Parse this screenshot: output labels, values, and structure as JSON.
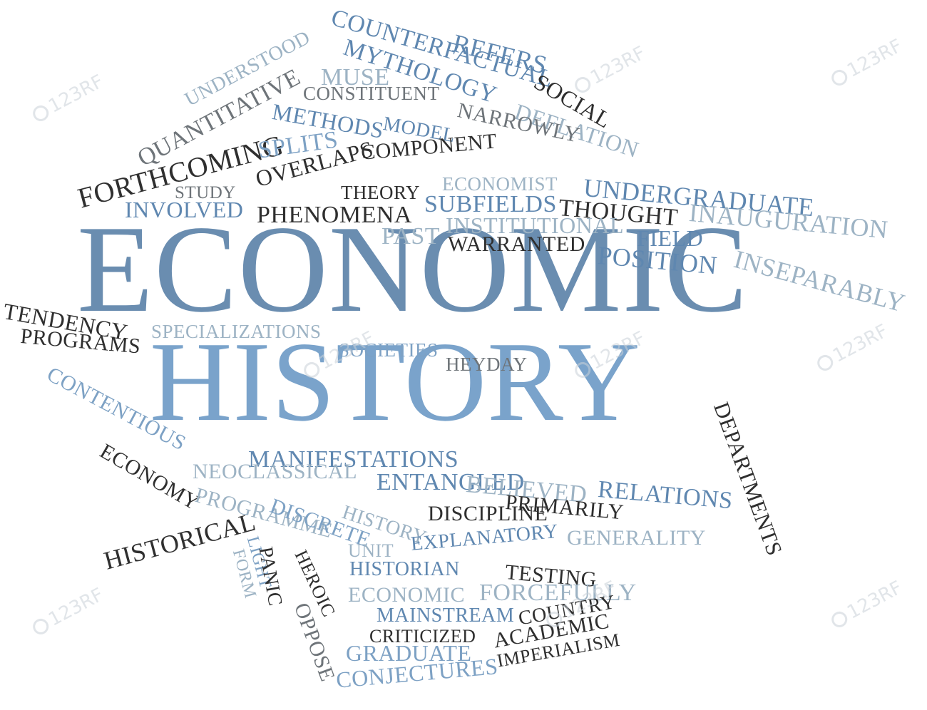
{
  "colors": {
    "dark": "#2f2f2f",
    "gray": "#6e7479",
    "steel": "#5f87b0",
    "lightsteel": "#7da1c4",
    "mist": "#9db3c4",
    "headline1": "#6a8db0",
    "headline2": "#7aa3cb"
  },
  "watermark": {
    "icon": "camera-aperture-icon",
    "text": "123RF"
  },
  "words": [
    {
      "text": "ECONOMIC",
      "tone": "headline1"
    },
    {
      "text": "HISTORY",
      "tone": "headline2"
    },
    {
      "text": "COUNTERFACTUAL",
      "tone": "steel"
    },
    {
      "text": "REFERS",
      "tone": "steel"
    },
    {
      "text": "MYTHOLOGY",
      "tone": "steel"
    },
    {
      "text": "SOCIAL",
      "tone": "dark"
    },
    {
      "text": "UNDERSTOOD",
      "tone": "mist"
    },
    {
      "text": "MUSE",
      "tone": "mist"
    },
    {
      "text": "QUANTITATIVE",
      "tone": "gray"
    },
    {
      "text": "CONSTITUENT",
      "tone": "gray"
    },
    {
      "text": "DEFLATION",
      "tone": "mist"
    },
    {
      "text": "METHODS",
      "tone": "steel"
    },
    {
      "text": "MODEL",
      "tone": "steel"
    },
    {
      "text": "NARROWLY",
      "tone": "gray"
    },
    {
      "text": "FORTHCOMING",
      "tone": "dark"
    },
    {
      "text": "SPLITS",
      "tone": "lightsteel"
    },
    {
      "text": "COMPONENT",
      "tone": "dark"
    },
    {
      "text": "OVERLAPS",
      "tone": "dark"
    },
    {
      "text": "STUDY",
      "tone": "gray"
    },
    {
      "text": "ECONOMIST",
      "tone": "mist"
    },
    {
      "text": "UNDERGRADUATE",
      "tone": "steel"
    },
    {
      "text": "THEORY",
      "tone": "dark"
    },
    {
      "text": "INVOLVED",
      "tone": "steel"
    },
    {
      "text": "PHENOMENA",
      "tone": "dark"
    },
    {
      "text": "SUBFIELDS",
      "tone": "steel"
    },
    {
      "text": "THOUGHT",
      "tone": "dark"
    },
    {
      "text": "INAUGURATION",
      "tone": "mist"
    },
    {
      "text": "INSTITUTIONAL",
      "tone": "mist"
    },
    {
      "text": "FIELD",
      "tone": "steel"
    },
    {
      "text": "PAST",
      "tone": "mist"
    },
    {
      "text": "WARRANTED",
      "tone": "dark"
    },
    {
      "text": "POSITION",
      "tone": "steel"
    },
    {
      "text": "INSEPARABLY",
      "tone": "mist"
    },
    {
      "text": "TENDENCY",
      "tone": "dark"
    },
    {
      "text": "PROGRAMS",
      "tone": "dark"
    },
    {
      "text": "SPECIALIZATIONS",
      "tone": "mist"
    },
    {
      "text": "SOCIETIES",
      "tone": "lightsteel"
    },
    {
      "text": "HEYDAY",
      "tone": "gray"
    },
    {
      "text": "DEPARTMENTS",
      "tone": "dark"
    },
    {
      "text": "CONTENTIOUS",
      "tone": "lightsteel"
    },
    {
      "text": "ECONOMY",
      "tone": "dark"
    },
    {
      "text": "MANIFESTATIONS",
      "tone": "steel"
    },
    {
      "text": "NEOCLASSICAL",
      "tone": "mist"
    },
    {
      "text": "ENTANGLED",
      "tone": "steel"
    },
    {
      "text": "BELIEVED",
      "tone": "mist"
    },
    {
      "text": "RELATIONS",
      "tone": "steel"
    },
    {
      "text": "PROGRAMME",
      "tone": "mist"
    },
    {
      "text": "DISCRETE",
      "tone": "lightsteel"
    },
    {
      "text": "HISTORY",
      "tone": "mist"
    },
    {
      "text": "DISCIPLINE",
      "tone": "dark"
    },
    {
      "text": "PRIMARILY",
      "tone": "dark"
    },
    {
      "text": "GENERALITY",
      "tone": "mist"
    },
    {
      "text": "HISTORICAL",
      "tone": "dark"
    },
    {
      "text": "LIGHT",
      "tone": "lightsteel"
    },
    {
      "text": "FORM",
      "tone": "mist"
    },
    {
      "text": "PANIC",
      "tone": "dark"
    },
    {
      "text": "HEROIC",
      "tone": "dark"
    },
    {
      "text": "UNIT",
      "tone": "mist"
    },
    {
      "text": "EXPLANATORY",
      "tone": "steel"
    },
    {
      "text": "TESTING",
      "tone": "dark"
    },
    {
      "text": "HISTORIAN",
      "tone": "steel"
    },
    {
      "text": "ECONOMIC",
      "tone": "mist"
    },
    {
      "text": "FORCEFULLY",
      "tone": "mist"
    },
    {
      "text": "OPPOSE",
      "tone": "gray"
    },
    {
      "text": "MAINSTREAM",
      "tone": "steel"
    },
    {
      "text": "COUNTRY",
      "tone": "dark"
    },
    {
      "text": "CRITICIZED",
      "tone": "dark"
    },
    {
      "text": "ACADEMIC",
      "tone": "dark"
    },
    {
      "text": "GRADUATE",
      "tone": "lightsteel"
    },
    {
      "text": "IMPERIALISM",
      "tone": "dark"
    },
    {
      "text": "CONJECTURES",
      "tone": "lightsteel"
    }
  ]
}
